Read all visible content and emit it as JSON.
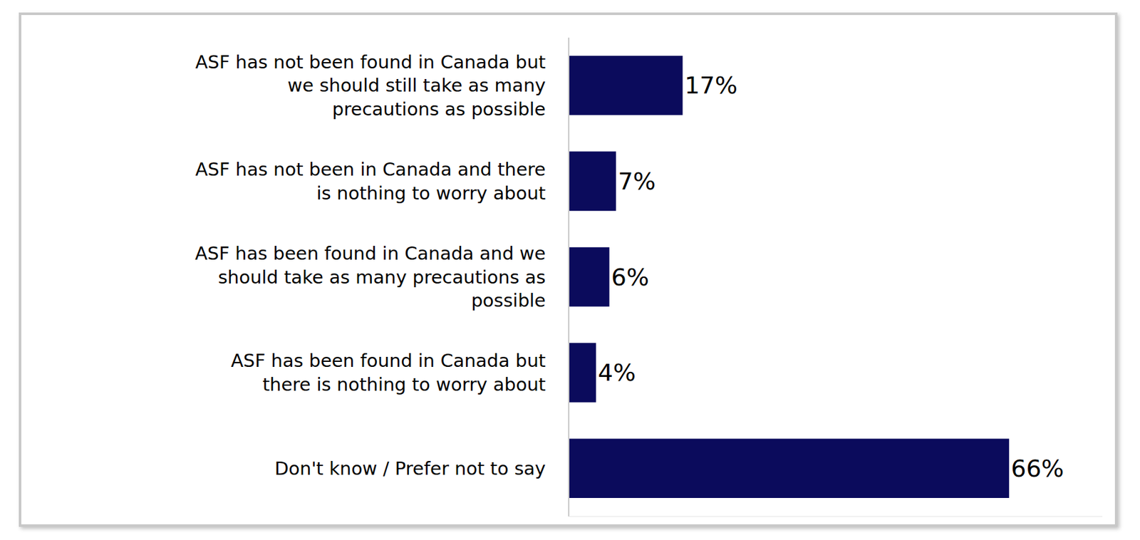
{
  "chart_data": {
    "type": "bar",
    "orientation": "horizontal",
    "categories": [
      "ASF has not been found in Canada but we should still take as many precautions as possible",
      "ASF has not been in Canada and there is nothing to worry about",
      "ASF has been found in Canada and we should take as many precautions as possible",
      "ASF has been found in Canada but there is nothing to worry about",
      "Don't know / Prefer not to say"
    ],
    "values": [
      17,
      7,
      6,
      4,
      66
    ],
    "value_labels": [
      "17%",
      "7%",
      "6%",
      "4%",
      "66%"
    ],
    "data_labels": true,
    "color": "#0b0b5c",
    "xlim": [
      0,
      80
    ],
    "xticks": [],
    "tick_labels": "y",
    "grid": false
  }
}
